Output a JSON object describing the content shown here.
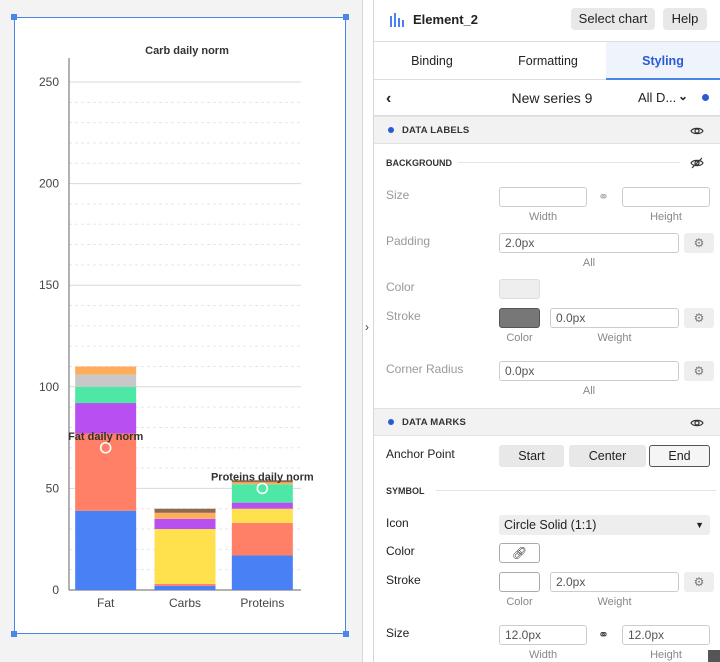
{
  "window": {
    "element_title": "Element_2",
    "select_chart_label": "Select chart",
    "help_label": "Help"
  },
  "tabs": [
    {
      "label": "Binding"
    },
    {
      "label": "Formatting"
    },
    {
      "label": "Styling",
      "active": true
    }
  ],
  "series_bar": {
    "series_name": "New series 9",
    "filter_label": "All D...",
    "accent": "#2a5bd7"
  },
  "data_labels": {
    "section_title": "DATA LABELS",
    "background_title": "BACKGROUND",
    "size_label": "Size",
    "size_width_value": "",
    "size_height_value": "",
    "width_caption": "Width",
    "height_caption": "Height",
    "padding_label": "Padding",
    "padding_value": "2.0px",
    "all_caption": "All",
    "color_label": "Color",
    "color_value": "#eeeeee",
    "stroke_label": "Stroke",
    "stroke_color": "#777777",
    "stroke_weight_value": "0.0px",
    "color_caption": "Color",
    "weight_caption": "Weight",
    "corner_radius_label": "Corner Radius",
    "corner_radius_value": "0.0px",
    "corner_all_caption": "All"
  },
  "data_marks": {
    "section_title": "DATA MARKS",
    "anchor_point_label": "Anchor Point",
    "anchor_options": [
      "Start",
      "Center",
      "End"
    ],
    "anchor_selected": "End",
    "symbol_title": "SYMBOL",
    "icon_label": "Icon",
    "icon_value": "Circle Solid (1:1)",
    "color_label": "Color",
    "stroke_label": "Stroke",
    "stroke_weight_value": "2.0px",
    "color_caption": "Color",
    "weight_caption": "Weight",
    "size_label": "Size",
    "size_width_value": "12.0px",
    "size_height_value": "12.0px",
    "width_caption": "Width",
    "height_caption": "Height"
  },
  "chart_data": {
    "type": "bar",
    "stacked": true,
    "title": "Carb daily norm",
    "categories": [
      "Fat",
      "Carbs",
      "Proteins"
    ],
    "ylim": [
      0,
      260
    ],
    "yticks": [
      0,
      50,
      100,
      150,
      200,
      250
    ],
    "grid": true,
    "series": [
      {
        "color": "#4a80f5",
        "values": [
          39,
          2,
          17
        ]
      },
      {
        "color": "#ff8066",
        "values": [
          38,
          1,
          16
        ]
      },
      {
        "color": "#ffe14d",
        "values": [
          0,
          27,
          7
        ]
      },
      {
        "color": "#b84ff0",
        "values": [
          15,
          5,
          3
        ]
      },
      {
        "color": "#4de8a6",
        "values": [
          8,
          0,
          9
        ]
      },
      {
        "color": "#c8c8c8",
        "values": [
          6,
          0,
          0
        ]
      },
      {
        "color": "#ffad5c",
        "values": [
          4,
          3,
          1
        ]
      },
      {
        "color": "#8b6a4f",
        "values": [
          0,
          2,
          1
        ]
      }
    ],
    "annotations": [
      {
        "category": "Fat",
        "text": "Fat daily norm",
        "value": 70
      },
      {
        "category": "Proteins",
        "text": "Proteins daily norm",
        "value": 50
      }
    ]
  }
}
